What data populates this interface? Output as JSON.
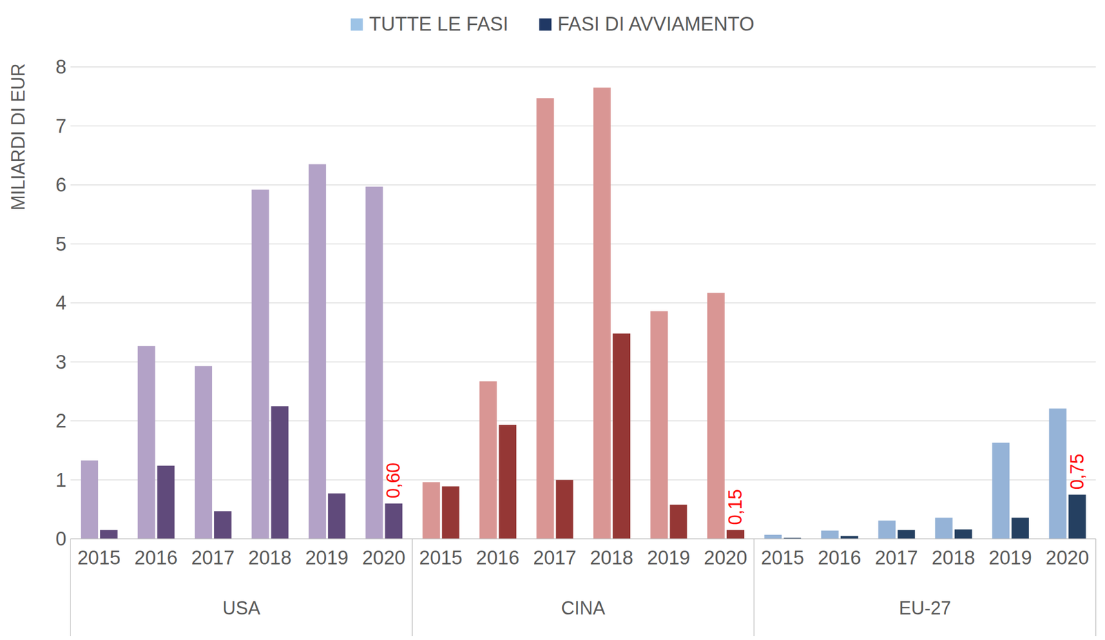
{
  "chart_data": {
    "type": "bar",
    "y_label": "MILIARDI DI EUR",
    "categories": [
      "2015",
      "2016",
      "2017",
      "2018",
      "2019",
      "2020",
      "2015",
      "2016",
      "2017",
      "2018",
      "2019",
      "2020",
      "2015",
      "2016",
      "2017",
      "2018",
      "2019",
      "2020"
    ],
    "groups": [
      "USA",
      "CINA",
      "EU-27"
    ],
    "series": [
      {
        "name": "TUTTE LE FASI",
        "color": "#9dc3e6",
        "colors": [
          "#b3a2c7",
          "#b3a2c7",
          "#b3a2c7",
          "#b3a2c7",
          "#b3a2c7",
          "#b3a2c7",
          "#d99694",
          "#d99694",
          "#d99694",
          "#d99694",
          "#d99694",
          "#d99694",
          "#95b3d7",
          "#95b3d7",
          "#95b3d7",
          "#95b3d7",
          "#95b3d7",
          "#95b3d7"
        ],
        "values": [
          1.33,
          3.27,
          2.93,
          5.92,
          6.35,
          5.97,
          0.96,
          2.67,
          7.47,
          7.65,
          3.86,
          4.17,
          0.07,
          0.14,
          0.31,
          0.36,
          1.63,
          2.21
        ]
      },
      {
        "name": "FASI DI AVVIAMENTO",
        "color": "#203864",
        "colors": [
          "#604a7b",
          "#604a7b",
          "#604a7b",
          "#604a7b",
          "#604a7b",
          "#604a7b",
          "#953735",
          "#953735",
          "#953735",
          "#953735",
          "#953735",
          "#953735",
          "#254061",
          "#254061",
          "#254061",
          "#254061",
          "#254061",
          "#254061"
        ],
        "values": [
          0.15,
          1.24,
          0.47,
          2.25,
          0.77,
          0.6,
          0.89,
          1.93,
          1.0,
          3.48,
          0.58,
          0.15,
          0.02,
          0.05,
          0.15,
          0.16,
          0.36,
          0.75
        ],
        "value_labels": [
          null,
          null,
          null,
          null,
          null,
          "0,60",
          null,
          null,
          null,
          null,
          null,
          "0,15",
          null,
          null,
          null,
          null,
          null,
          "0,75"
        ]
      }
    ],
    "ylim": [
      0,
      8
    ],
    "yticks": [
      0,
      1,
      2,
      3,
      4,
      5,
      6,
      7,
      8
    ],
    "grid": true,
    "legend": "top",
    "data_labels": true
  }
}
